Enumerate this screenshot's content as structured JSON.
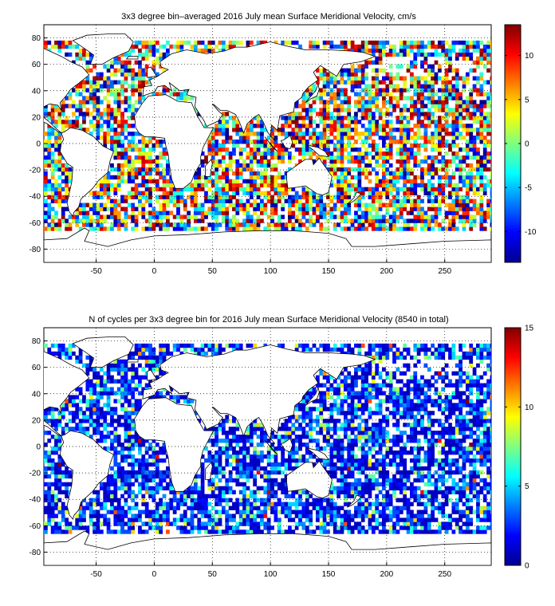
{
  "chart_data": [
    {
      "type": "heatmap",
      "title": "3x3 degree bin–averaged 2016 July mean Surface Meridional Velocity, cm/s",
      "xlabel": "",
      "ylabel": "",
      "xlim": [
        -95,
        290
      ],
      "ylim": [
        -90,
        90
      ],
      "x_ticks": [
        -50,
        0,
        50,
        100,
        150,
        200,
        250
      ],
      "y_ticks": [
        -80,
        -60,
        -40,
        -20,
        0,
        20,
        40,
        60,
        80
      ],
      "bin_size_deg": 3,
      "grid": true,
      "grid_style": "dotted",
      "colorbar": {
        "range": [
          -13.5,
          13.5
        ],
        "ticks": [
          -10,
          -5,
          0,
          5,
          10
        ],
        "colormap": "jet"
      },
      "cell_values_note": "dense grid of 3x3 degree ocean bins with values spanning the full colour range"
    },
    {
      "type": "heatmap",
      "title": "N of cycles per 3x3 degree bin for 2016 July mean Surface Meridional Velocity (8540 in total)",
      "xlabel": "",
      "ylabel": "",
      "xlim": [
        -95,
        290
      ],
      "ylim": [
        -90,
        90
      ],
      "x_ticks": [
        -50,
        0,
        50,
        100,
        150,
        200,
        250
      ],
      "y_ticks": [
        -80,
        -60,
        -40,
        -20,
        0,
        20,
        40,
        60,
        80
      ],
      "bin_size_deg": 3,
      "grid": true,
      "grid_style": "dotted",
      "colorbar": {
        "range": [
          0,
          15
        ],
        "ticks": [
          0,
          5,
          10,
          15
        ],
        "colormap": "jet"
      },
      "total_count": 8540
    }
  ],
  "colors": {
    "jet": [
      "#00008f",
      "#0000ff",
      "#0080ff",
      "#00ffff",
      "#80ff80",
      "#ffff00",
      "#ff8000",
      "#ff0000",
      "#800000"
    ],
    "coast": "#000000",
    "grid": "#000000"
  }
}
